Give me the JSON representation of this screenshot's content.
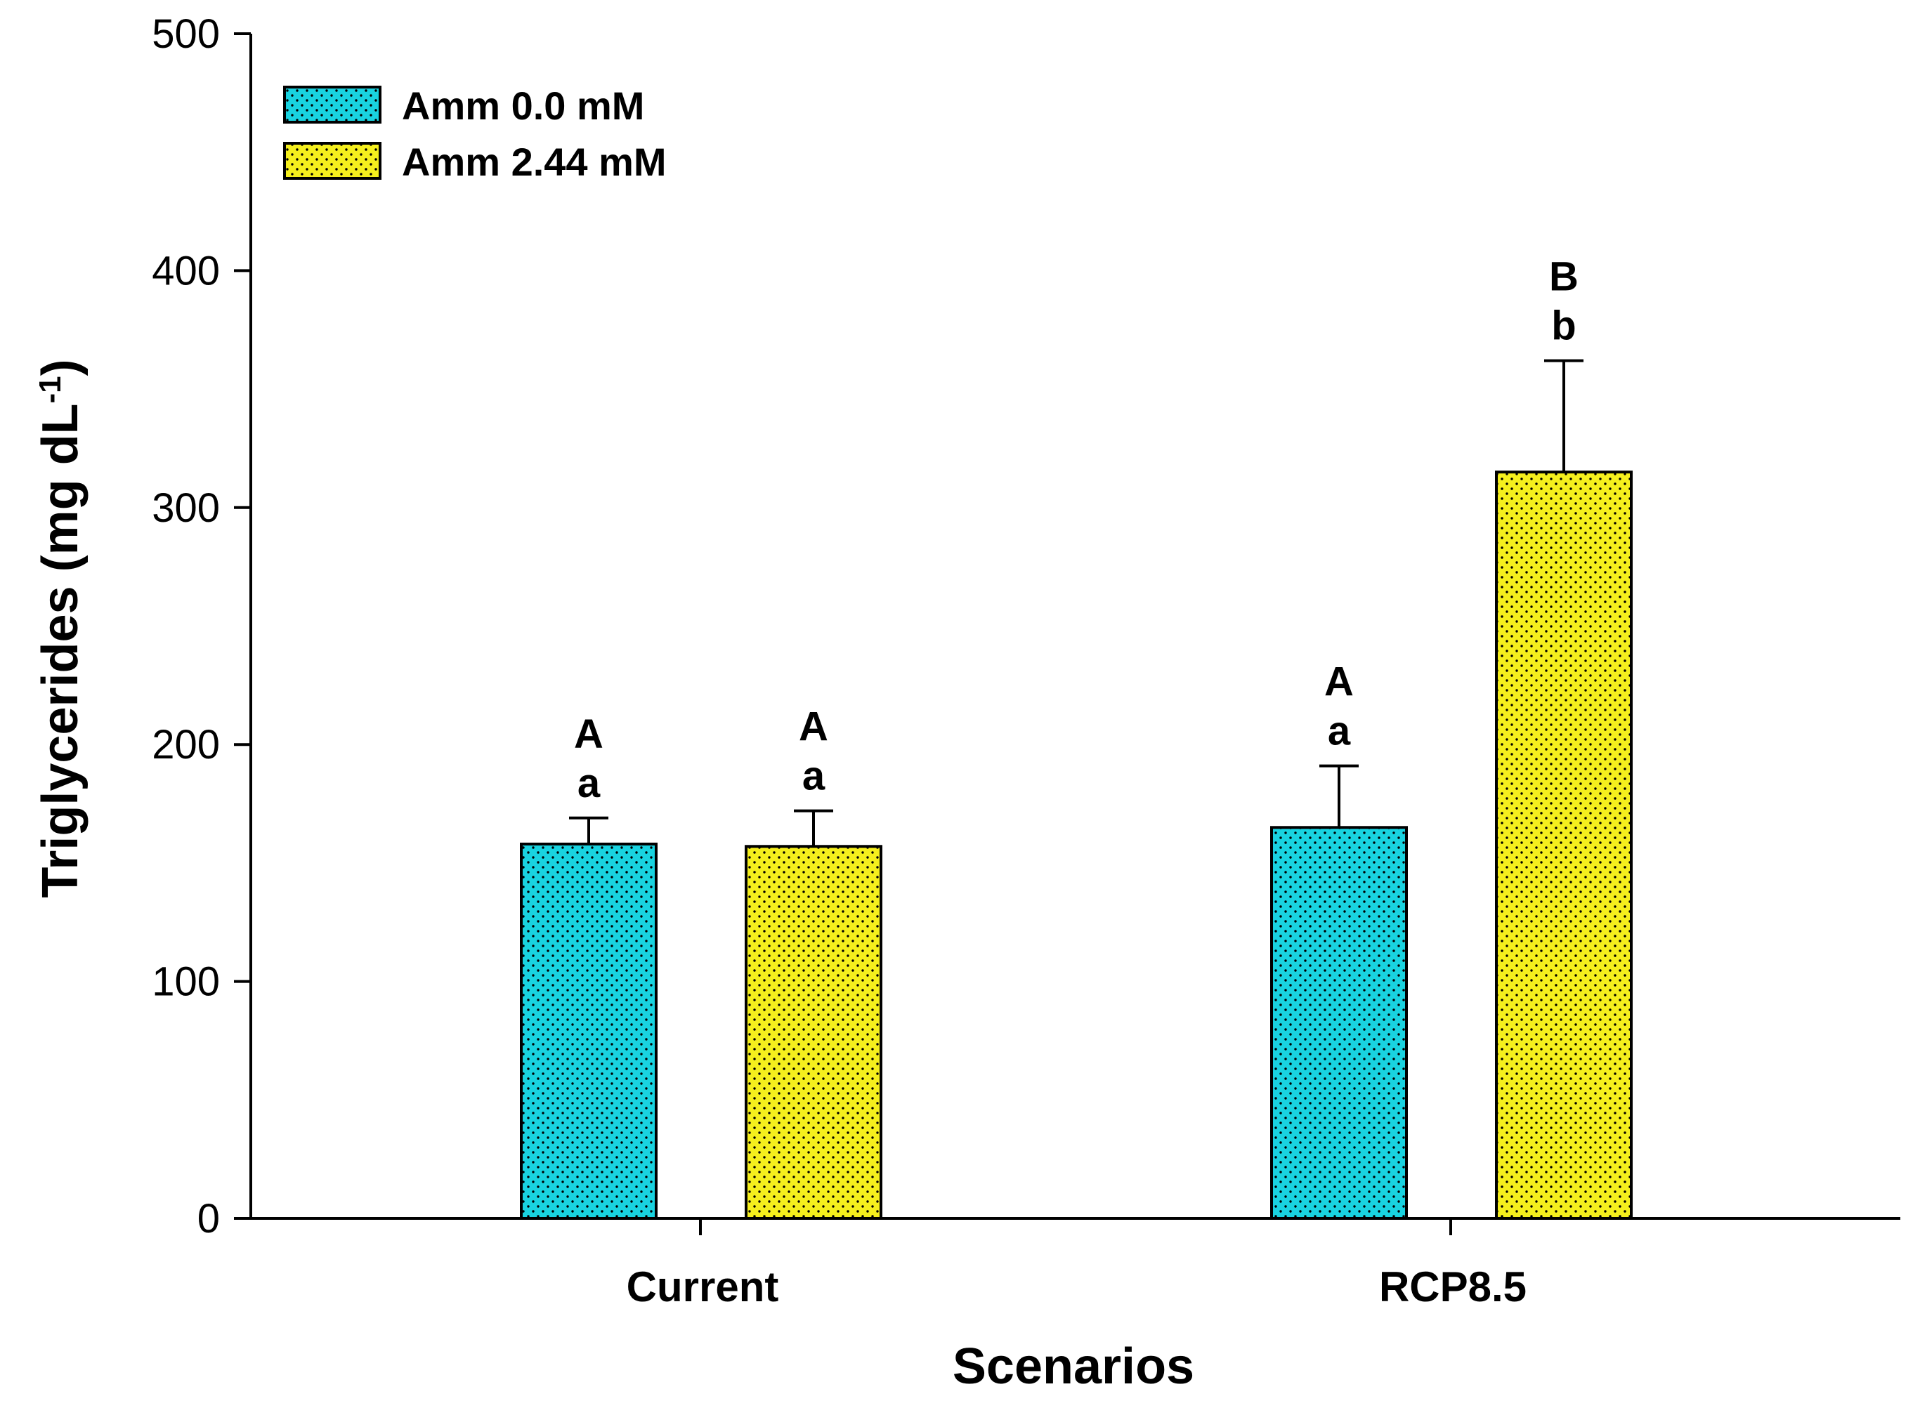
{
  "chart_data": {
    "type": "bar",
    "title": "",
    "xlabel": "Scenarios",
    "ylabel": "Triglycerides (mg dL",
    "ylabel_superscript": "-1",
    "ylabel_close": ")",
    "categories": [
      "Current",
      "RCP8.5"
    ],
    "ylim": [
      0,
      500
    ],
    "yticks": [
      0,
      100,
      200,
      300,
      400,
      500
    ],
    "grid": false,
    "legend_position": "top-left",
    "series": [
      {
        "name": "Amm 0.0 mM",
        "color": "#19d3e0",
        "values": [
          158,
          165
        ],
        "errors": [
          11,
          26
        ],
        "labels_upper": [
          "A",
          "A"
        ],
        "labels_lower": [
          "a",
          "a"
        ]
      },
      {
        "name": "Amm 2.44 mM",
        "color": "#f5ef1d",
        "values": [
          157,
          315
        ],
        "errors": [
          15,
          47
        ],
        "labels_upper": [
          "A",
          "B"
        ],
        "labels_lower": [
          "a",
          "b"
        ]
      }
    ]
  }
}
